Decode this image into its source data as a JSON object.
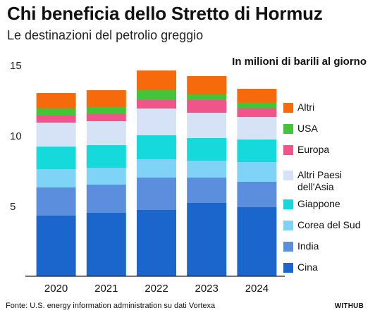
{
  "header": {
    "title": "Chi beneficia dello Stretto di Hormuz",
    "subtitle": "Le destinazioni del petrolio greggio",
    "unit": "In milioni di barili al giorno"
  },
  "footer": {
    "source": "Fonte: U.S. energy information administration su dati Vortexa",
    "brand": "WITHUB"
  },
  "chart_data": {
    "type": "bar",
    "stacked": true,
    "categories": [
      "2020",
      "2021",
      "2022",
      "2023",
      "2024"
    ],
    "ylim": [
      0,
      15
    ],
    "yticks": [
      5,
      10,
      15
    ],
    "grid": false,
    "legend_position": "right",
    "series": [
      {
        "name": "Cina",
        "color": "#1a66cc",
        "values": [
          4.3,
          4.5,
          4.7,
          5.2,
          4.9
        ]
      },
      {
        "name": "India",
        "color": "#5b8fde",
        "values": [
          2.0,
          2.0,
          2.3,
          1.8,
          1.8
        ]
      },
      {
        "name": "Corea del Sud",
        "color": "#7fd3f7",
        "values": [
          1.3,
          1.2,
          1.3,
          1.2,
          1.4
        ]
      },
      {
        "name": "Giappone",
        "color": "#16d9dc",
        "values": [
          1.6,
          1.6,
          1.7,
          1.6,
          1.6
        ]
      },
      {
        "name": "Altri Paesi dell'Asia",
        "color": "#d6e2f5",
        "values": [
          1.7,
          1.7,
          1.9,
          1.8,
          1.6
        ]
      },
      {
        "name": "Europa",
        "color": "#f0548a",
        "values": [
          0.5,
          0.5,
          0.6,
          0.9,
          0.6
        ]
      },
      {
        "name": "USA",
        "color": "#43c43a",
        "values": [
          0.5,
          0.5,
          0.7,
          0.4,
          0.4
        ]
      },
      {
        "name": "Altri",
        "color": "#f66a0c",
        "values": [
          1.1,
          1.2,
          1.4,
          1.3,
          1.0
        ]
      }
    ]
  }
}
